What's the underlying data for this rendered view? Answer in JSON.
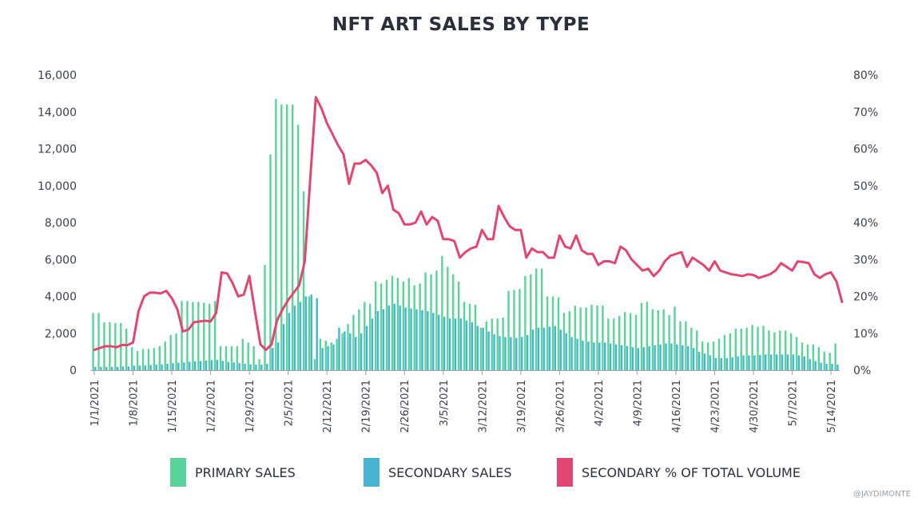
{
  "chart_data": {
    "type": "bar",
    "title": "NFT ART SALES BY TYPE",
    "credit": "@JAYDIMONTE",
    "y_left": {
      "min": 0,
      "max": 16000,
      "ticks": [
        "0",
        "2,000",
        "4,000",
        "6,000",
        "8,000",
        "10,000",
        "12,000",
        "14,000",
        "16,000"
      ]
    },
    "y_right": {
      "min": 0,
      "max": 80,
      "ticks": [
        "0%",
        "10%",
        "20%",
        "30%",
        "40%",
        "50%",
        "60%",
        "70%",
        "80%"
      ]
    },
    "x_labels": [
      "1/1/2021",
      "1/8/2021",
      "1/15/2021",
      "1/22/2021",
      "1/29/2021",
      "2/5/2021",
      "2/12/2021",
      "2/19/2021",
      "2/26/2021",
      "3/5/2021",
      "3/12/2021",
      "3/19/2021",
      "3/26/2021",
      "4/2/2021",
      "4/9/2021",
      "4/16/2021",
      "4/23/2021",
      "4/30/2021",
      "5/7/2021",
      "5/14/2021"
    ],
    "legend": [
      {
        "name": "PRIMARY SALES",
        "color": "#5ad39a"
      },
      {
        "name": "SECONDARY SALES",
        "color": "#45b3d2"
      },
      {
        "name": "SECONDARY % OF TOTAL VOLUME",
        "color": "#e0466f"
      }
    ],
    "series": [
      {
        "name": "PRIMARY SALES",
        "kind": "bar",
        "values": [
          3100,
          3100,
          2600,
          2600,
          2550,
          2550,
          2250,
          1250,
          1050,
          1150,
          1150,
          1200,
          1300,
          1550,
          1900,
          2000,
          3750,
          3750,
          3700,
          3700,
          3650,
          3600,
          3750,
          1300,
          1300,
          1300,
          1300,
          1700,
          1500,
          1300,
          600,
          5700,
          11700,
          14700,
          14400,
          14400,
          14400,
          13300,
          9700,
          4000,
          600,
          1700,
          1600,
          1500,
          1700,
          2000,
          2500,
          3000,
          3300,
          3700,
          3600,
          4800,
          4700,
          4900,
          5100,
          5000,
          4800,
          5000,
          4600,
          4700,
          5300,
          5200,
          5400,
          6200,
          5600,
          5200,
          4800,
          3700,
          3600,
          3550,
          2300,
          2650,
          2800,
          2800,
          2850,
          4300,
          4350,
          4400,
          5100,
          5200,
          5500,
          5500,
          4000,
          4000,
          3950,
          3100,
          3200,
          3500,
          3400,
          3400,
          3550,
          3500,
          3500,
          2800,
          2800,
          2950,
          3150,
          3100,
          3000,
          3650,
          3700,
          3300,
          3250,
          3300,
          3000,
          3450,
          2650,
          2650,
          2300,
          2150,
          1550,
          1500,
          1550,
          1700,
          1900,
          2000,
          2250,
          2250,
          2300,
          2450,
          2350,
          2400,
          2150,
          2050,
          2150,
          2150,
          2000,
          1800,
          1500,
          1400,
          1400,
          1250,
          1000,
          950,
          1450
        ]
      },
      {
        "name": "SECONDARY SALES",
        "kind": "bar",
        "values": [
          180,
          180,
          180,
          180,
          180,
          200,
          200,
          250,
          250,
          250,
          280,
          300,
          320,
          350,
          380,
          400,
          420,
          450,
          480,
          500,
          520,
          550,
          560,
          500,
          450,
          420,
          380,
          350,
          320,
          300,
          300,
          340,
          1200,
          1500,
          2500,
          3100,
          3500,
          3700,
          4000,
          4100,
          3900,
          1200,
          1300,
          1400,
          2300,
          2100,
          2000,
          1800,
          2000,
          2400,
          2800,
          3200,
          3300,
          3500,
          3600,
          3500,
          3400,
          3350,
          3300,
          3250,
          3200,
          3100,
          3000,
          2900,
          2800,
          2800,
          2800,
          2700,
          2600,
          2400,
          2300,
          2100,
          1950,
          1850,
          1800,
          1800,
          1750,
          1800,
          1900,
          2200,
          2300,
          2300,
          2350,
          2400,
          2200,
          2000,
          1800,
          1700,
          1600,
          1550,
          1500,
          1500,
          1500,
          1450,
          1400,
          1350,
          1300,
          1250,
          1200,
          1250,
          1300,
          1350,
          1400,
          1450,
          1450,
          1400,
          1350,
          1300,
          1200,
          1000,
          900,
          800,
          650,
          650,
          650,
          700,
          750,
          800,
          800,
          800,
          820,
          850,
          850,
          850,
          850,
          850,
          850,
          800,
          750,
          600,
          500,
          400,
          350,
          350,
          300
        ]
      },
      {
        "name": "SECONDARY % OF TOTAL VOLUME",
        "kind": "line",
        "values": [
          5.5,
          6,
          6.5,
          6.5,
          6.2,
          6.8,
          6.8,
          7.5,
          16,
          20,
          21,
          21,
          20.8,
          21.5,
          19.5,
          16.5,
          10.5,
          11,
          13,
          13.2,
          13.4,
          13.2,
          15.5,
          26.5,
          26.2,
          23.5,
          20,
          20.5,
          25.5,
          16,
          7,
          5.5,
          7,
          13.5,
          16.5,
          19,
          21,
          23,
          29.5,
          52,
          74,
          71,
          67,
          64,
          61,
          58.5,
          50.5,
          56,
          56,
          57,
          55.5,
          53.5,
          48,
          50,
          43.5,
          42.5,
          39.5,
          39.5,
          40,
          43,
          39.5,
          41.5,
          40.5,
          35.5,
          35.5,
          35,
          30.5,
          32,
          33,
          33.5,
          38,
          35.5,
          35.5,
          44.5,
          41.5,
          39,
          38,
          38,
          30.5,
          33,
          32,
          32,
          30.5,
          30.5,
          36.5,
          33.5,
          33,
          36.5,
          32.5,
          31.5,
          31.5,
          28.5,
          29.5,
          29.5,
          29,
          33.5,
          32.5,
          30,
          28.5,
          27,
          27.5,
          25.5,
          27,
          29.5,
          31,
          31.5,
          32,
          28,
          30.5,
          29.5,
          28.5,
          27,
          29.5,
          27,
          26.5,
          26,
          25.8,
          25.5,
          26,
          25.8,
          25,
          25.5,
          26,
          27,
          29,
          28,
          27,
          29.5,
          29.3,
          29,
          26,
          25,
          26,
          26.5,
          24,
          18.5
        ]
      }
    ]
  }
}
